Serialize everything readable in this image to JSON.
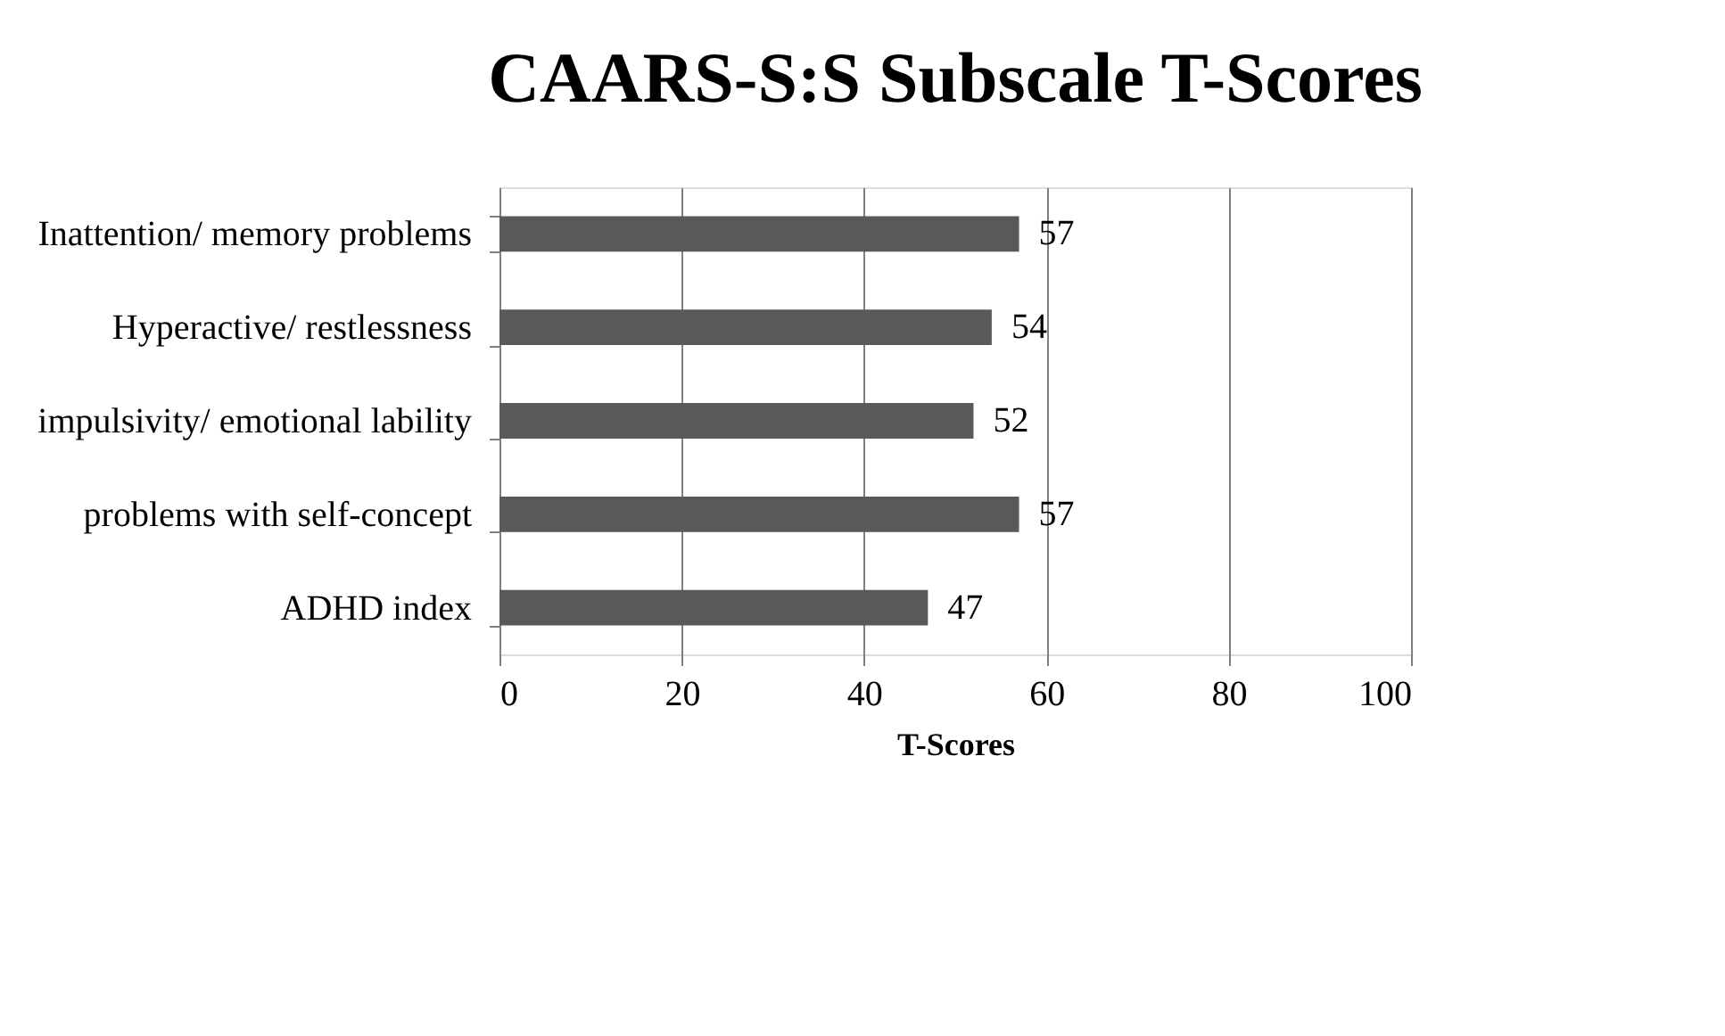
{
  "chart_data": {
    "type": "bar",
    "orientation": "horizontal",
    "title": "CAARS-S:S Subscale T-Scores",
    "xlabel": "T-Scores",
    "categories": [
      "Inattention/ memory problems",
      "Hyperactive/ restlessness",
      "impulsivity/ emotional lability",
      "problems with self-concept",
      "ADHD index"
    ],
    "values": [
      57,
      54,
      52,
      57,
      47
    ],
    "color": "#595959",
    "xlim": [
      0,
      100
    ],
    "xticks": [
      0,
      20,
      40,
      60,
      80,
      100
    ],
    "grid": "x",
    "data_labels": true
  }
}
